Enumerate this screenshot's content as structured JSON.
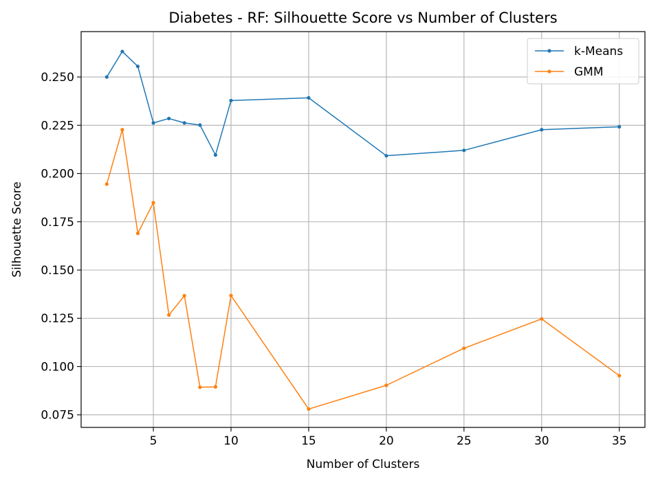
{
  "chart_data": {
    "type": "line",
    "title": "Diabetes - RF: Silhouette Score vs Number of Clusters",
    "xlabel": "Number of Clusters",
    "ylabel": "Silhouette Score",
    "xlim": [
      0.35,
      36.65
    ],
    "ylim": [
      0.0685,
      0.2735
    ],
    "xticks": [
      5,
      10,
      15,
      20,
      25,
      30,
      35
    ],
    "xtick_labels": [
      "5",
      "10",
      "15",
      "20",
      "25",
      "30",
      "35"
    ],
    "yticks": [
      0.075,
      0.1,
      0.125,
      0.15,
      0.175,
      0.2,
      0.225,
      0.25
    ],
    "ytick_labels": [
      "0.075",
      "0.100",
      "0.125",
      "0.150",
      "0.175",
      "0.200",
      "0.225",
      "0.250"
    ],
    "grid": true,
    "legend_position": "top-right",
    "x": [
      2,
      3,
      4,
      5,
      6,
      7,
      8,
      9,
      10,
      15,
      20,
      25,
      30,
      35
    ],
    "series": [
      {
        "name": "k-Means",
        "color": "#1f77b4",
        "values": [
          0.25,
          0.2632,
          0.2555,
          0.2262,
          0.2285,
          0.2262,
          0.2251,
          0.2096,
          0.2378,
          0.2392,
          0.2092,
          0.212,
          0.2227,
          0.2242
        ]
      },
      {
        "name": "GMM",
        "color": "#ff7f0e",
        "values": [
          0.1945,
          0.2227,
          0.169,
          0.1849,
          0.1267,
          0.1367,
          0.0893,
          0.0895,
          0.1368,
          0.078,
          0.0903,
          0.1095,
          0.1247,
          0.0953
        ]
      }
    ]
  }
}
